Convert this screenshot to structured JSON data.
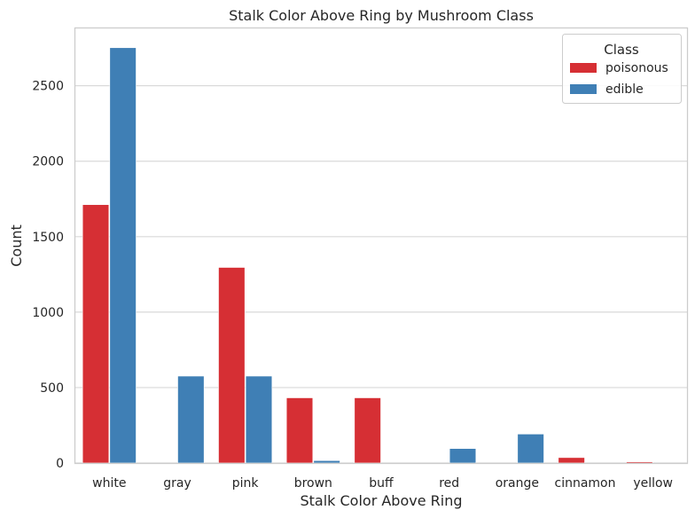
{
  "chart_data": {
    "type": "bar",
    "title": "Stalk Color Above Ring by Mushroom Class",
    "xlabel": "Stalk Color Above Ring",
    "ylabel": "Count",
    "ylim": [
      0,
      2880
    ],
    "yticks": [
      0,
      500,
      1000,
      1500,
      2000,
      2500
    ],
    "grid": "horizontal",
    "legend_position": "top-right",
    "legend_title": "Class",
    "categories": [
      "white",
      "gray",
      "pink",
      "brown",
      "buff",
      "red",
      "orange",
      "cinnamon",
      "yellow"
    ],
    "series": [
      {
        "name": "poisonous",
        "color": "#d62f34",
        "values": [
          1712,
          0,
          1296,
          432,
          432,
          0,
          0,
          36,
          8
        ]
      },
      {
        "name": "edible",
        "color": "#3f7fb5",
        "values": [
          2752,
          576,
          576,
          16,
          0,
          96,
          192,
          0,
          0
        ]
      }
    ]
  }
}
